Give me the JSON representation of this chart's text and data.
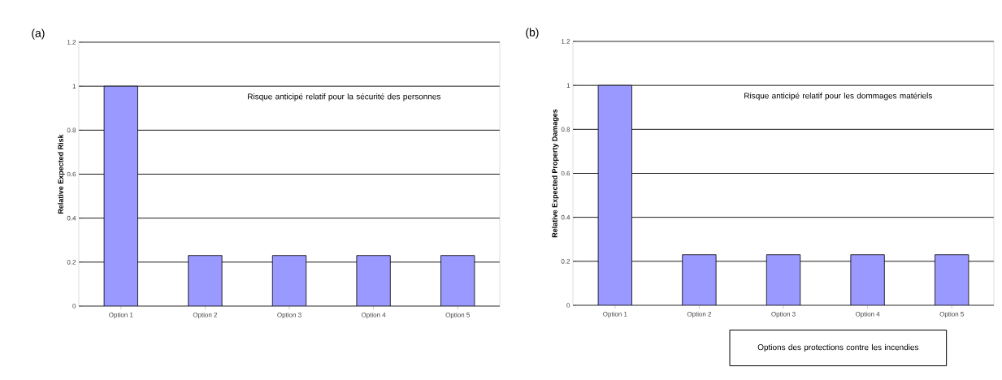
{
  "chart_data": [
    {
      "type": "bar",
      "title": "(a)",
      "ylabel": "Relative Expected Risk",
      "categories": [
        "Option 1",
        "Option 2",
        "Option 3",
        "Option 4",
        "Option 5"
      ],
      "values": [
        1,
        0.23,
        0.23,
        0.23,
        0.23
      ],
      "color": "#9999ff",
      "ylim": [
        0,
        1.2
      ],
      "yticks": [
        0,
        0.2,
        0.4,
        0.6,
        0.8,
        1,
        1.2
      ],
      "grid": "y",
      "annotations": [
        "Risque anticipé relatif pour la sécurité des personnes"
      ]
    },
    {
      "type": "bar",
      "title": "(b)",
      "ylabel": "Relative Expected Property Damages",
      "xlabel": "Options des protections contre les incendies",
      "categories": [
        "Option 1",
        "Option 2",
        "Option 3",
        "Option 4",
        "Option 5"
      ],
      "values": [
        1,
        0.23,
        0.23,
        0.23,
        0.23
      ],
      "color": "#9999ff",
      "ylim": [
        0,
        1.2
      ],
      "yticks": [
        0,
        0.2,
        0.4,
        0.6,
        0.8,
        1,
        1.2
      ],
      "grid": "y",
      "annotations": [
        "Risque anticipé relatif pour les dommages matériels"
      ]
    }
  ]
}
